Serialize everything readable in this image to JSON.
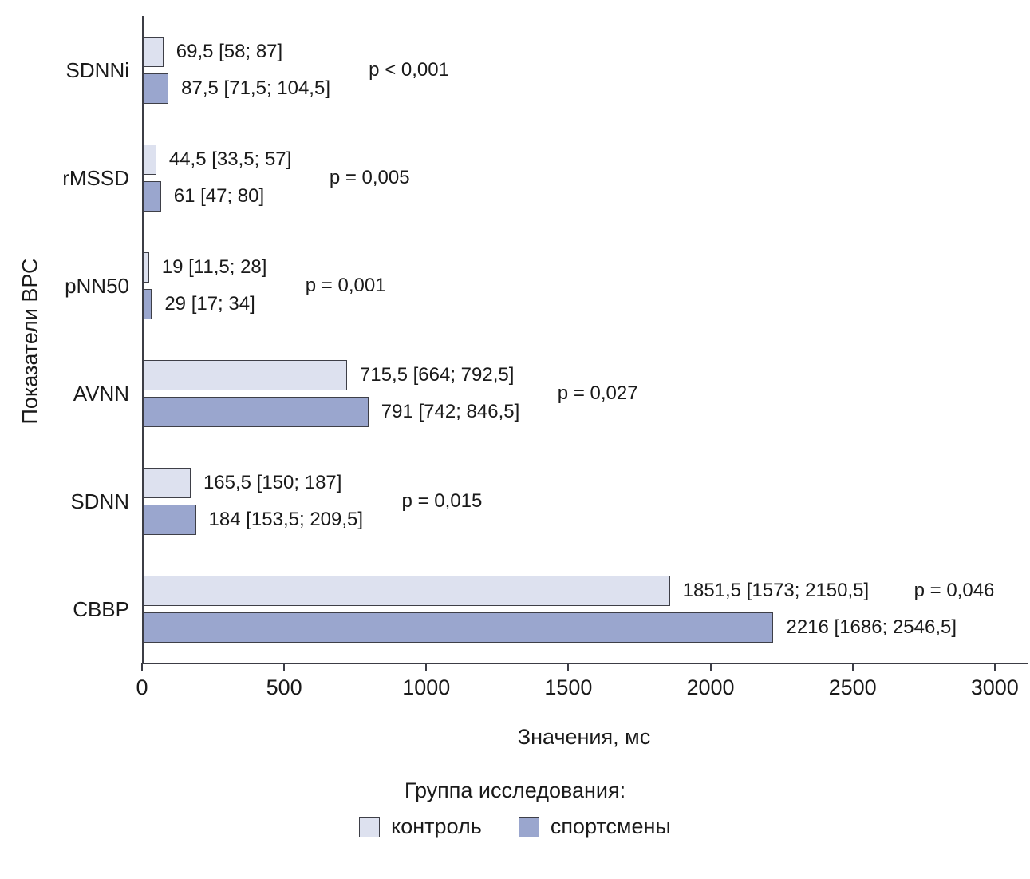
{
  "chart_data": {
    "type": "bar",
    "orientation": "horizontal",
    "title": "",
    "xlabel": "Значения, мс",
    "ylabel": "Показатели ВРС",
    "xlim": [
      0,
      3110
    ],
    "xticks": [
      0,
      500,
      1000,
      1500,
      2000,
      2500,
      3000
    ],
    "grid": false,
    "legend_position": "bottom",
    "legend_title": "Группа исследования:",
    "categories": [
      "SDNNi",
      "rMSSD",
      "pNN50",
      "AVNN",
      "SDNN",
      "СВВР"
    ],
    "series": [
      {
        "name": "контроль",
        "color": "#dde1ef",
        "border_color": "#3e3f47",
        "values": [
          69.5,
          44.5,
          19,
          715.5,
          165.5,
          1851.5
        ],
        "labels": [
          "69,5 [58; 87]",
          "44,5 [33,5; 57]",
          "19 [11,5; 28]",
          "715,5 [664; 792,5]",
          "165,5 [150; 187]",
          "1851,5 [1573; 2150,5]"
        ]
      },
      {
        "name": "спортсмены",
        "color": "#9aa6ce",
        "border_color": "#3e3f47",
        "values": [
          87.5,
          61,
          29,
          791,
          184,
          2216
        ],
        "labels": [
          "87,5 [71,5; 104,5]",
          "61 [47; 80]",
          "29 [17; 34]",
          "791 [742; 846,5]",
          "184 [153,5; 209,5]",
          "2216 [1686; 2546,5]"
        ]
      }
    ],
    "p_values": [
      "p < 0,001",
      "p = 0,005",
      "p = 0,001",
      "p = 0,027",
      "p = 0,015",
      "p = 0,046"
    ]
  }
}
